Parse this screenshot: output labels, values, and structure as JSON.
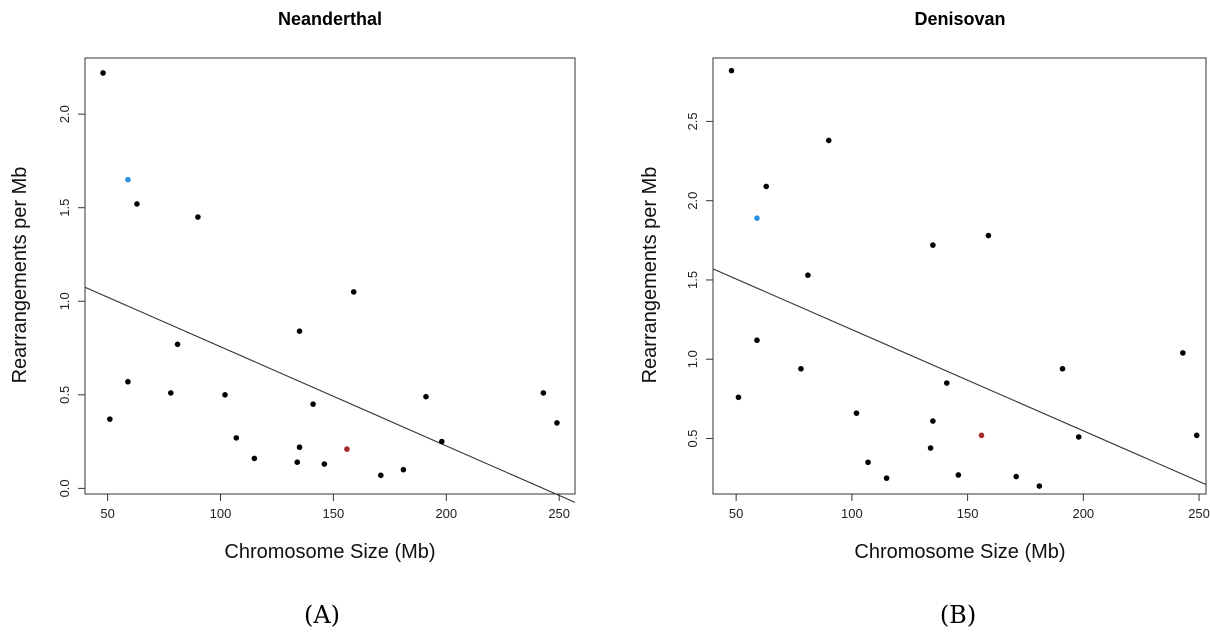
{
  "chart_data": [
    {
      "type": "scatter",
      "title": "Neanderthal",
      "panel_label": "(A)",
      "xlabel": "Chromosome Size (Mb)",
      "ylabel": "Rearrangements per Mb",
      "xlim": [
        40,
        257
      ],
      "ylim": [
        -0.03,
        2.3
      ],
      "xticks": [
        50,
        100,
        150,
        200,
        250
      ],
      "yticks": [
        0.0,
        0.5,
        1.0,
        1.5,
        2.0
      ],
      "xtick_labels": [
        "50",
        "100",
        "150",
        "200",
        "250"
      ],
      "ytick_labels": [
        "0.0",
        "0.5",
        "1.0",
        "1.5",
        "2.0"
      ],
      "regression_line": {
        "x": [
          40,
          257
        ],
        "y": [
          1.075,
          -0.075
        ],
        "color": "#333333"
      },
      "points": [
        {
          "x": 48,
          "y": 2.22,
          "color": "#000000"
        },
        {
          "x": 51,
          "y": 0.37,
          "color": "#000000"
        },
        {
          "x": 59,
          "y": 0.57,
          "color": "#000000"
        },
        {
          "x": 59,
          "y": 1.65,
          "color": "#2b8fe0"
        },
        {
          "x": 63,
          "y": 1.52,
          "color": "#000000"
        },
        {
          "x": 78,
          "y": 0.51,
          "color": "#000000"
        },
        {
          "x": 81,
          "y": 0.77,
          "color": "#000000"
        },
        {
          "x": 90,
          "y": 1.45,
          "color": "#000000"
        },
        {
          "x": 102,
          "y": 0.5,
          "color": "#000000"
        },
        {
          "x": 107,
          "y": 0.27,
          "color": "#000000"
        },
        {
          "x": 115,
          "y": 0.16,
          "color": "#000000"
        },
        {
          "x": 134,
          "y": 0.14,
          "color": "#000000"
        },
        {
          "x": 135,
          "y": 0.22,
          "color": "#000000"
        },
        {
          "x": 135,
          "y": 0.84,
          "color": "#000000"
        },
        {
          "x": 141,
          "y": 0.45,
          "color": "#000000"
        },
        {
          "x": 146,
          "y": 0.13,
          "color": "#000000"
        },
        {
          "x": 156,
          "y": 0.21,
          "color": "#a52a2a"
        },
        {
          "x": 159,
          "y": 1.05,
          "color": "#000000"
        },
        {
          "x": 171,
          "y": 0.07,
          "color": "#000000"
        },
        {
          "x": 181,
          "y": 0.1,
          "color": "#000000"
        },
        {
          "x": 191,
          "y": 0.49,
          "color": "#000000"
        },
        {
          "x": 198,
          "y": 0.25,
          "color": "#000000"
        },
        {
          "x": 243,
          "y": 0.51,
          "color": "#000000"
        },
        {
          "x": 249,
          "y": 0.35,
          "color": "#000000"
        }
      ]
    },
    {
      "type": "scatter",
      "title": "Denisovan",
      "panel_label": "(B)",
      "xlabel": "Chromosome Size (Mb)",
      "ylabel": "Rearrangements per Mb",
      "xlim": [
        40,
        253
      ],
      "ylim": [
        0.15,
        2.9
      ],
      "xticks": [
        50,
        100,
        150,
        200,
        250
      ],
      "yticks": [
        0.5,
        1.0,
        1.5,
        2.0,
        2.5
      ],
      "xtick_labels": [
        "50",
        "100",
        "150",
        "200",
        "250"
      ],
      "ytick_labels": [
        "0.5",
        "1.0",
        "1.5",
        "2.0",
        "2.5"
      ],
      "regression_line": {
        "x": [
          40,
          253
        ],
        "y": [
          1.57,
          0.21
        ],
        "color": "#333333"
      },
      "points": [
        {
          "x": 48,
          "y": 2.82,
          "color": "#000000"
        },
        {
          "x": 51,
          "y": 0.76,
          "color": "#000000"
        },
        {
          "x": 59,
          "y": 1.12,
          "color": "#000000"
        },
        {
          "x": 59,
          "y": 1.89,
          "color": "#2b8fe0"
        },
        {
          "x": 63,
          "y": 2.09,
          "color": "#000000"
        },
        {
          "x": 78,
          "y": 0.94,
          "color": "#000000"
        },
        {
          "x": 81,
          "y": 1.53,
          "color": "#000000"
        },
        {
          "x": 90,
          "y": 2.38,
          "color": "#000000"
        },
        {
          "x": 102,
          "y": 0.66,
          "color": "#000000"
        },
        {
          "x": 107,
          "y": 0.35,
          "color": "#000000"
        },
        {
          "x": 115,
          "y": 0.25,
          "color": "#000000"
        },
        {
          "x": 134,
          "y": 0.44,
          "color": "#000000"
        },
        {
          "x": 135,
          "y": 0.61,
          "color": "#000000"
        },
        {
          "x": 135,
          "y": 1.72,
          "color": "#000000"
        },
        {
          "x": 141,
          "y": 0.85,
          "color": "#000000"
        },
        {
          "x": 146,
          "y": 0.27,
          "color": "#000000"
        },
        {
          "x": 156,
          "y": 0.52,
          "color": "#a52a2a"
        },
        {
          "x": 159,
          "y": 1.78,
          "color": "#000000"
        },
        {
          "x": 171,
          "y": 0.26,
          "color": "#000000"
        },
        {
          "x": 181,
          "y": 0.2,
          "color": "#000000"
        },
        {
          "x": 191,
          "y": 0.94,
          "color": "#000000"
        },
        {
          "x": 198,
          "y": 0.51,
          "color": "#000000"
        },
        {
          "x": 243,
          "y": 1.04,
          "color": "#000000"
        },
        {
          "x": 249,
          "y": 0.52,
          "color": "#000000"
        }
      ]
    }
  ]
}
